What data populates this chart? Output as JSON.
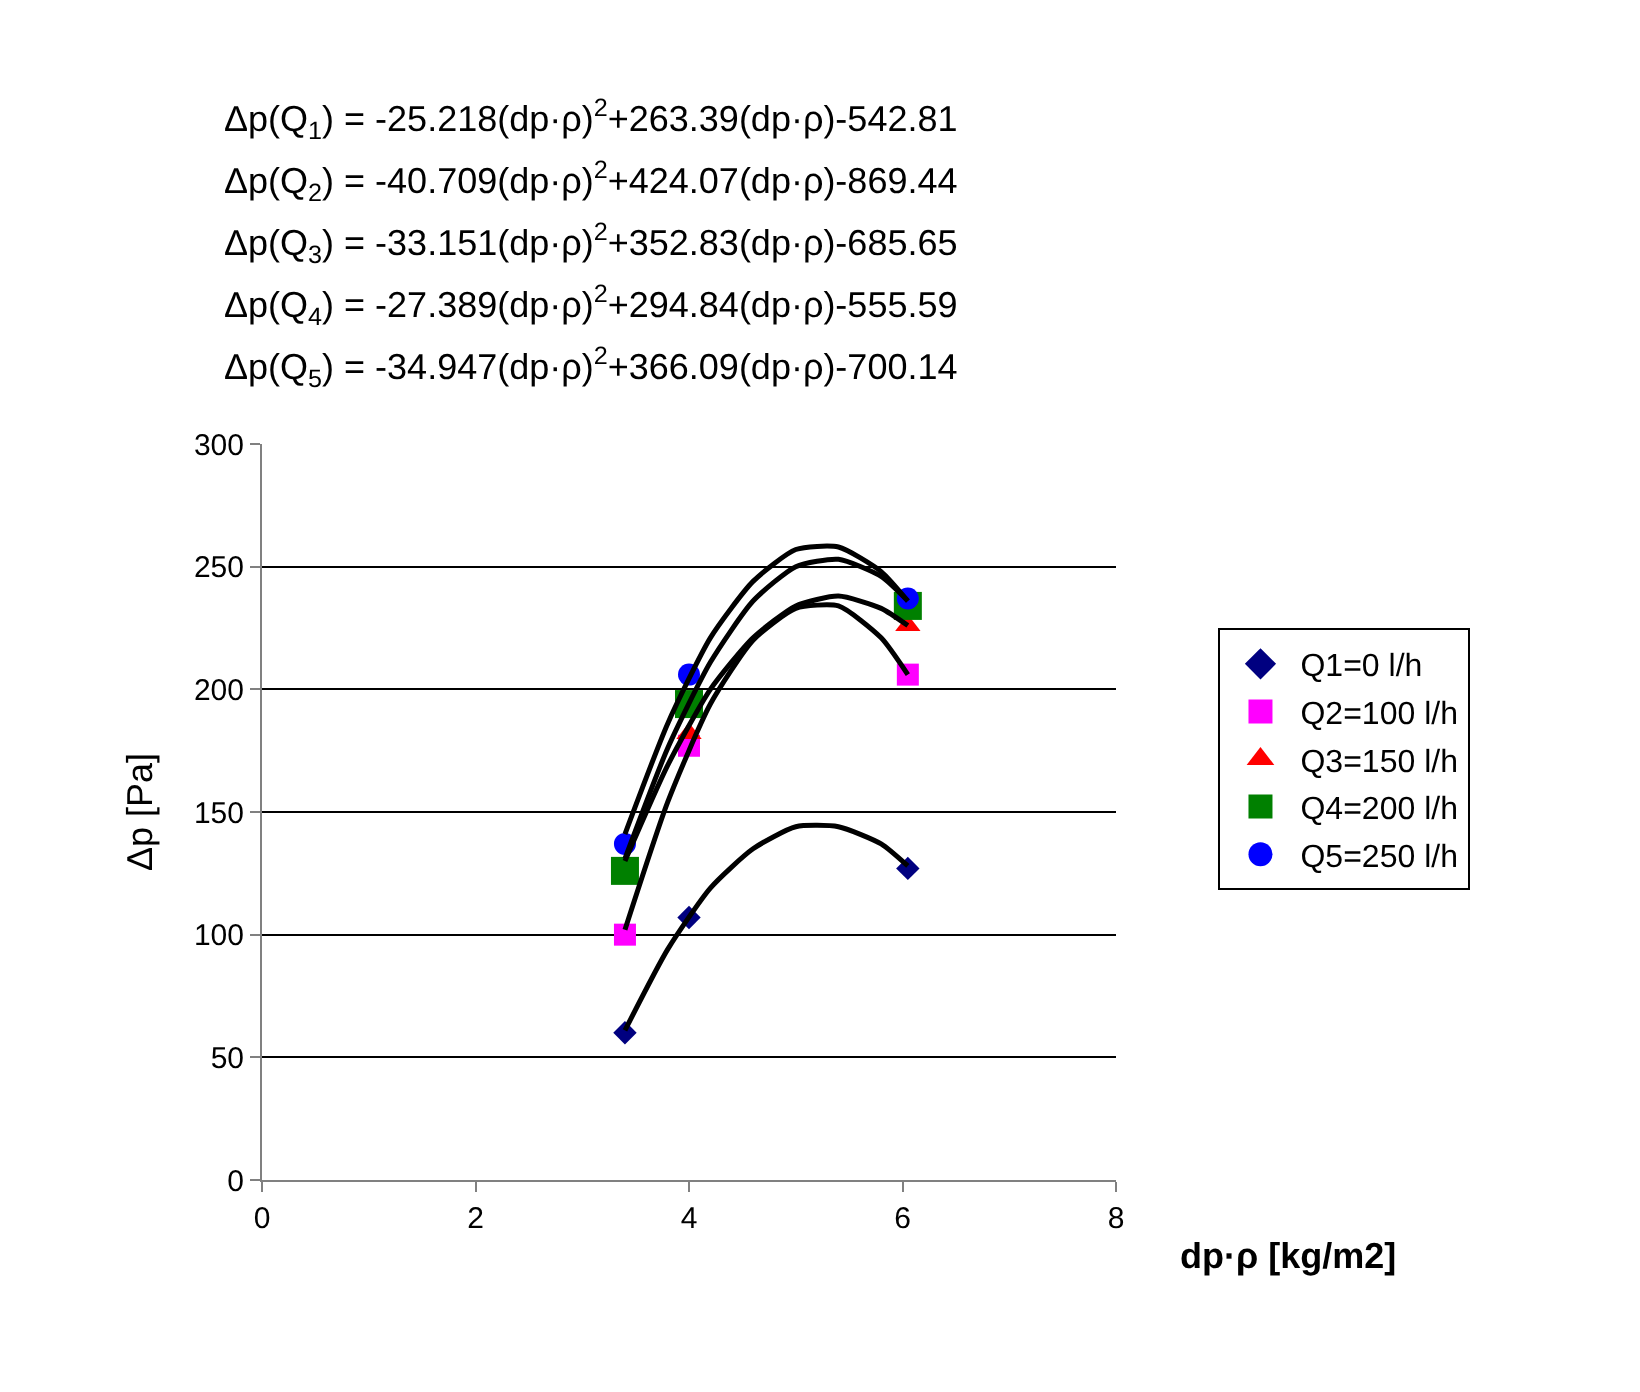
{
  "chart_data": {
    "type": "scatter",
    "xlabel": "dp·ρ [kg/m2]",
    "ylabel": "Δp [Pa]",
    "annotations": [
      "Δp(Q$_{1}$) = -25.218(dp·ρ)$^{2}$+263.39(dp·ρ)-542.81",
      "Δp(Q$_{2}$) = -40.709(dp·ρ)$^{2}$+424.07(dp·ρ)-869.44",
      "Δp(Q$_{3}$) = -33.151(dp·ρ)$^{2}$+352.83(dp·ρ)-685.65",
      "Δp(Q$_{4}$) = -27.389(dp·ρ)$^{2}$+294.84(dp·ρ)-555.59",
      "Δp(Q$_{5}$) = -34.947(dp·ρ)$^{2}$+366.09(dp·ρ)-700.14"
    ],
    "x": [
      3.4,
      4.0,
      6.05
    ],
    "series": [
      {
        "type": "line",
        "color": "#000000",
        "marker": "none",
        "x": [
          3.4,
          3.8,
          4.2,
          4.6,
          5.0,
          5.4,
          5.8,
          6.05
        ],
        "values": [
          61,
          94,
          119,
          135,
          144,
          144,
          137,
          128
        ]
      },
      {
        "type": "line",
        "color": "#000000",
        "marker": "none",
        "x": [
          3.4,
          3.8,
          4.2,
          4.6,
          5.0,
          5.4,
          5.8,
          6.05
        ],
        "values": [
          102,
          154,
          194,
          220,
          233,
          234,
          221,
          206
        ]
      },
      {
        "type": "line",
        "color": "#000000",
        "marker": "none",
        "x": [
          3.4,
          3.8,
          4.2,
          4.6,
          5.0,
          5.4,
          5.8,
          6.05
        ],
        "values": [
          131,
          176,
          211,
          236,
          250,
          253,
          246,
          236
        ]
      },
      {
        "type": "line",
        "color": "#000000",
        "marker": "none",
        "x": [
          3.4,
          3.8,
          4.2,
          4.6,
          5.0,
          5.4,
          5.8,
          6.05
        ],
        "values": [
          130,
          169,
          200,
          221,
          234,
          238,
          233,
          226
        ]
      },
      {
        "type": "line",
        "color": "#000000",
        "marker": "none",
        "x": [
          3.4,
          3.8,
          4.2,
          4.6,
          5.0,
          5.4,
          5.8,
          6.05
        ],
        "values": [
          141,
          186,
          221,
          244,
          257,
          258,
          248,
          236
        ]
      },
      {
        "name": "Q1=0 l/h",
        "color": "#000080",
        "marker": "diamond",
        "values": [
          60,
          107,
          127
        ]
      },
      {
        "name": "Q2=100 l/h",
        "color": "#ff00ff",
        "marker": "square",
        "values": [
          100,
          177,
          206
        ]
      },
      {
        "name": "Q3=150 l/h",
        "color": "#ff0000",
        "marker": "triangle",
        "values": [
          null,
          182,
          226
        ]
      },
      {
        "name": "Q4=200 l/h",
        "color": "#008000",
        "marker": "square",
        "values": [
          126,
          194,
          234
        ]
      },
      {
        "name": "Q5=250 l/h",
        "color": "#0000ff",
        "marker": "circle",
        "values": [
          137,
          206,
          237
        ]
      }
    ],
    "xlim": [
      0,
      8
    ],
    "xticks": [
      0,
      2,
      4,
      6,
      8
    ],
    "ylim": [
      0,
      300
    ],
    "yticks": [
      0,
      50,
      100,
      150,
      200,
      250,
      300
    ],
    "grid": "y",
    "legend": "right"
  }
}
